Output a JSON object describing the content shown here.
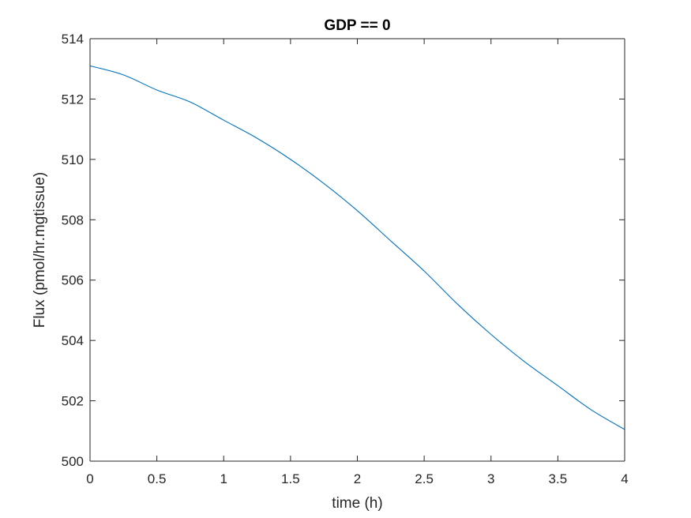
{
  "chart_data": {
    "type": "line",
    "title": "GDP == 0",
    "xlabel": "time (h)",
    "ylabel": "Flux (pmol/hr.mgtissue)",
    "xlim": [
      0,
      4
    ],
    "ylim": [
      500,
      514
    ],
    "xticks": [
      0,
      0.5,
      1,
      1.5,
      2,
      2.5,
      3,
      3.5,
      4
    ],
    "xtick_labels": [
      "0",
      "0.5",
      "1",
      "1.5",
      "2",
      "2.5",
      "3",
      "3.5",
      "4"
    ],
    "yticks": [
      500,
      502,
      504,
      506,
      508,
      510,
      512,
      514
    ],
    "ytick_labels": [
      "500",
      "502",
      "504",
      "506",
      "508",
      "510",
      "512",
      "514"
    ],
    "grid": false,
    "series": [
      {
        "color": "#0072BD",
        "x": [
          0,
          0.25,
          0.5,
          0.75,
          1.0,
          1.25,
          1.5,
          1.75,
          2.0,
          2.25,
          2.5,
          2.75,
          3.0,
          3.25,
          3.5,
          3.75,
          4.0
        ],
        "y": [
          513.1,
          512.8,
          512.3,
          511.9,
          511.3,
          510.7,
          510.0,
          509.2,
          508.3,
          507.3,
          506.3,
          505.2,
          504.2,
          503.3,
          502.5,
          501.7,
          501.05
        ]
      }
    ]
  }
}
